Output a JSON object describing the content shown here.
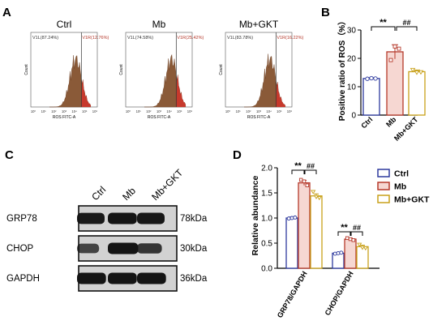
{
  "panel_letters": {
    "a": "A",
    "b": "B",
    "c": "C",
    "d": "D"
  },
  "colors": {
    "ctrl": "#2e3a9e",
    "mb": "#b5382a",
    "gkt": "#c8a11a",
    "mb_fill": "#f6d7d2",
    "hist_fill": "#8a5a38"
  },
  "flow": {
    "xlabel": "ROS FITC-A",
    "ylabel": "Count",
    "x_ticks": [
      "10⁰",
      "10¹",
      "10²",
      "10³",
      "10⁴",
      "10⁵",
      "10⁶"
    ],
    "panels": [
      {
        "title": "Ctrl",
        "v1l": "V1L(87.24%)",
        "v1r": "V1R(12.76%)"
      },
      {
        "title": "Mb",
        "v1l": "V1L(74.58%)",
        "v1r": "V1R(25.42%)"
      },
      {
        "title": "Mb+GKT",
        "v1l": "V1L(83.78%)",
        "v1r": "V1R(16.22%)"
      }
    ]
  },
  "western": {
    "lanes": [
      "Ctrl",
      "Mb",
      "Mb+GKT"
    ],
    "blots": [
      {
        "label": "GRP78",
        "kda": "78kDa"
      },
      {
        "label": "CHOP",
        "kda": "30kDa"
      },
      {
        "label": "GAPDH",
        "kda": "36kDa"
      }
    ]
  },
  "chart_data": [
    {
      "type": "bar",
      "panel": "B",
      "ylabel": "Positive ratio of ROS（%）",
      "categories": [
        "Ctrl",
        "Mb",
        "Mb+GKT"
      ],
      "values": [
        12.9,
        22.3,
        15.3
      ],
      "errors": [
        0.3,
        2.5,
        0.6
      ],
      "points": [
        [
          12.8,
          13.0,
          12.9
        ],
        [
          19.4,
          24.2,
          23.4
        ],
        [
          15.9,
          15.0,
          15.1
        ]
      ],
      "ylim": [
        0,
        30
      ],
      "yticks": [
        0,
        10,
        20,
        30
      ],
      "annotations": [
        "**",
        "##"
      ]
    },
    {
      "type": "bar",
      "panel": "D",
      "ylabel": "Relative abundance",
      "categories": [
        "GRP78/GAPDH",
        "CHOP/GAPDH"
      ],
      "series": [
        {
          "name": "Ctrl",
          "values": [
            1.0,
            0.3
          ],
          "errors": [
            0.02,
            0.01
          ],
          "points": [
            [
              0.99,
              1.0,
              1.01
            ],
            [
              0.29,
              0.3,
              0.31
            ]
          ]
        },
        {
          "name": "Mb",
          "values": [
            1.7,
            0.58
          ],
          "errors": [
            0.05,
            0.02
          ],
          "points": [
            [
              1.76,
              1.73,
              1.65
            ],
            [
              0.6,
              0.58,
              0.56
            ]
          ]
        },
        {
          "name": "Mb+GKT",
          "values": [
            1.44,
            0.43
          ],
          "errors": [
            0.04,
            0.03
          ],
          "points": [
            [
              1.52,
              1.42,
              1.4
            ],
            [
              0.47,
              0.41,
              0.4
            ]
          ]
        }
      ],
      "ylim": [
        0,
        2.0
      ],
      "yticks": [
        0.0,
        0.5,
        1.0,
        1.5,
        2.0
      ],
      "annotations": [
        "**",
        "##",
        "**",
        "##"
      ]
    }
  ]
}
